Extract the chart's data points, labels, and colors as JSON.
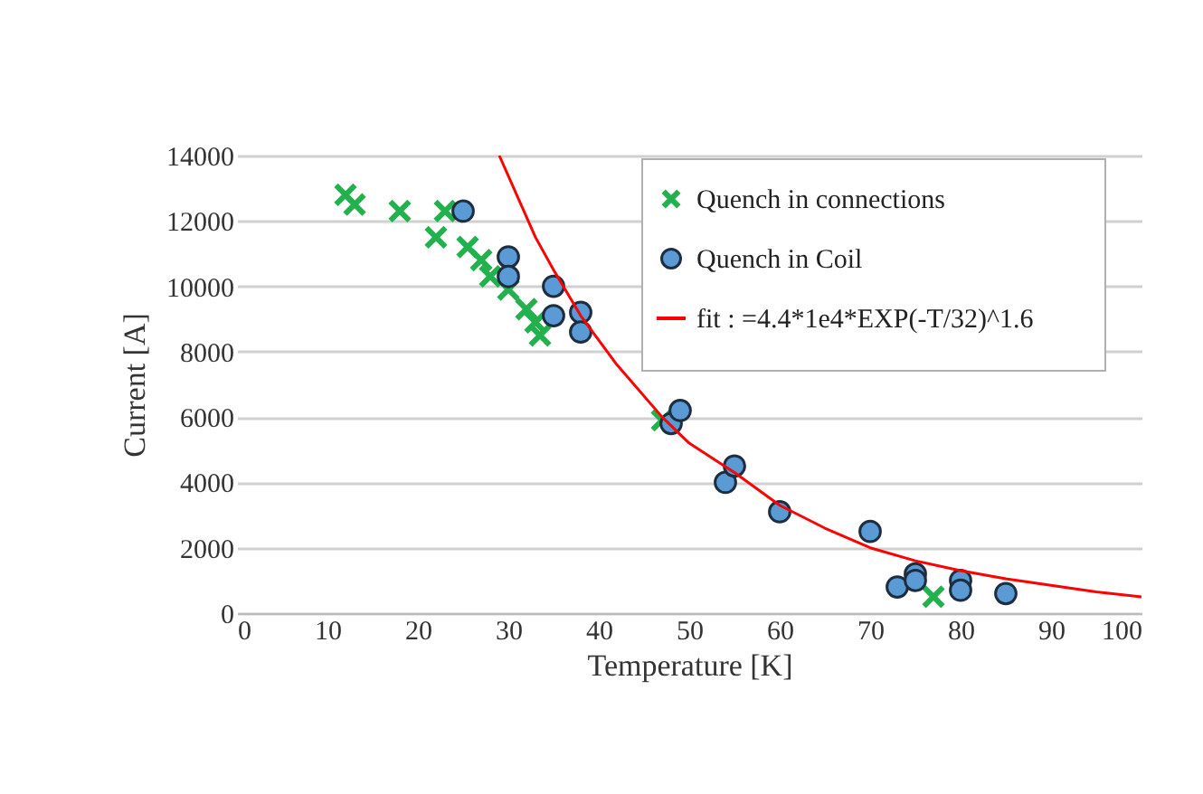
{
  "chart_data": {
    "type": "scatter",
    "xlabel": "Temperature [K]",
    "ylabel": "Current [A]",
    "xlim": [
      0,
      100
    ],
    "xticks": [
      0,
      10,
      20,
      30,
      40,
      50,
      60,
      70,
      80,
      90,
      100
    ],
    "ylim": [
      0,
      14000
    ],
    "yticks": [
      0,
      2000,
      4000,
      6000,
      8000,
      10000,
      12000,
      14000
    ],
    "grid": "y",
    "legend": "top right",
    "series": [
      {
        "name": "Quench in connections",
        "color": "#22b14c",
        "marker": "cross",
        "x": [
          12,
          13,
          18,
          23,
          22,
          25.5,
          27,
          28,
          30,
          32,
          33,
          33.5,
          47,
          77
        ],
        "values": [
          12800,
          12500,
          12300,
          12300,
          11500,
          11200,
          10800,
          10300,
          9900,
          9300,
          8900,
          8500,
          5900,
          500
        ]
      },
      {
        "name": "Quench in Coil",
        "color": "#5b9bd5",
        "marker": "circle",
        "x": [
          25,
          30,
          30,
          35,
          35,
          38,
          38,
          48,
          49,
          54,
          55,
          60,
          70,
          73,
          75,
          75,
          80,
          80,
          85
        ],
        "values": [
          12300,
          10900,
          10300,
          10000,
          9100,
          9200,
          8600,
          5800,
          6200,
          4000,
          4500,
          3100,
          2500,
          800,
          1200,
          1000,
          1000,
          700,
          600
        ]
      },
      {
        "name": "fit : =4.4*1e4*EXP(-T/32)^1.6",
        "color": "#ff0000",
        "type": "line",
        "marker": "none",
        "x": [
          29,
          33,
          35,
          38,
          42,
          47,
          50,
          55,
          60,
          65,
          70,
          75,
          80,
          85,
          90,
          95,
          100
        ],
        "values": [
          14000,
          11500,
          10500,
          9100,
          7600,
          6000,
          5200,
          4300,
          3300,
          2600,
          2000,
          1600,
          1300,
          1050,
          850,
          650,
          500
        ]
      }
    ]
  }
}
